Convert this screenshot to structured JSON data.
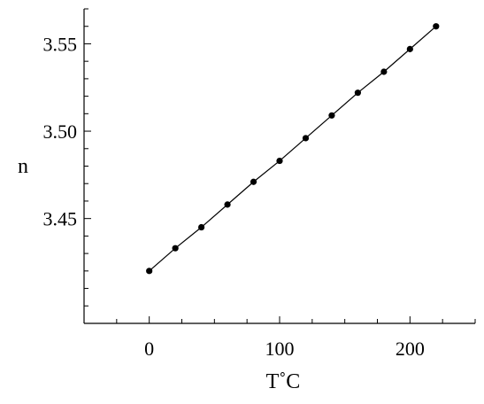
{
  "chart_data": {
    "type": "line",
    "title": "",
    "xlabel": "T˚C",
    "ylabel": "n",
    "xlim": [
      -50,
      250
    ],
    "ylim": [
      3.39,
      3.57
    ],
    "x_ticks": [
      0,
      100,
      200
    ],
    "x_tick_labels": [
      "0",
      "100",
      "200"
    ],
    "y_ticks": [
      3.45,
      3.5,
      3.55
    ],
    "y_tick_labels": [
      "3.45",
      "3.50",
      "3.55"
    ],
    "grid": false,
    "series": [
      {
        "x": [
          0,
          20,
          40,
          60,
          80,
          100,
          120,
          140,
          160,
          180,
          200,
          220
        ],
        "y": [
          3.42,
          3.433,
          3.445,
          3.458,
          3.471,
          3.483,
          3.496,
          3.509,
          3.522,
          3.534,
          3.547,
          3.56
        ]
      }
    ]
  }
}
